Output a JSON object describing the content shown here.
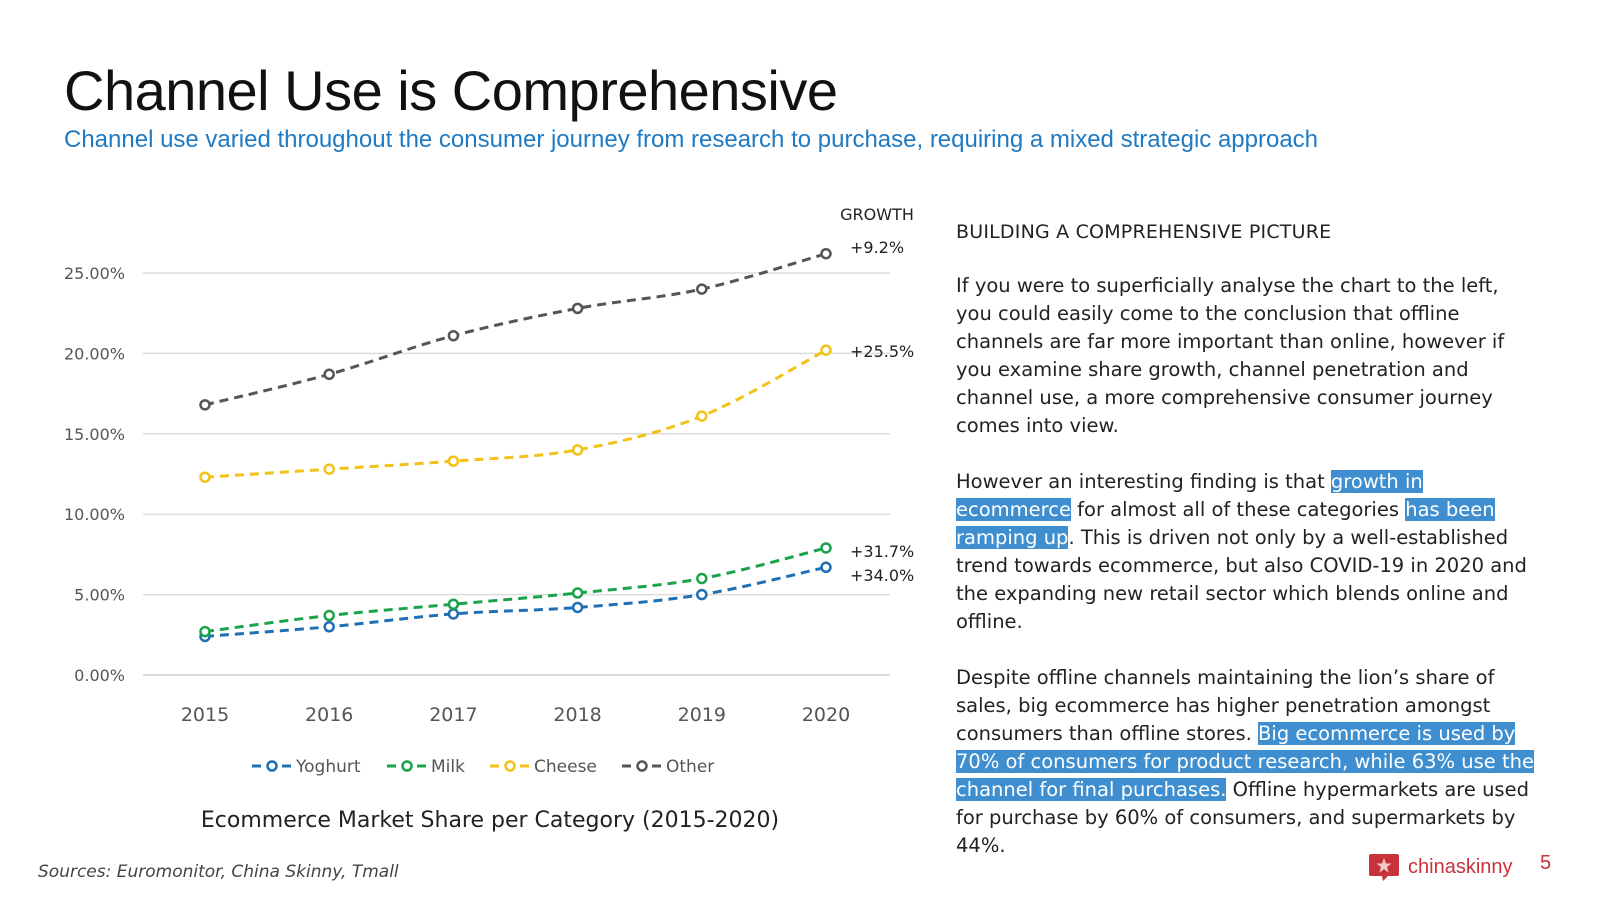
{
  "header": {
    "title": "Channel Use is Comprehensive",
    "subtitle": "Channel use varied throughout the consumer journey from research to purchase, requiring a mixed strategic approach"
  },
  "chart_data": {
    "type": "line",
    "title": "Ecommerce Market Share per Category (2015-2020)",
    "categories": [
      "2015",
      "2016",
      "2017",
      "2018",
      "2019",
      "2020"
    ],
    "ylim": [
      0,
      25
    ],
    "yticks": [
      0,
      5,
      10,
      15,
      20,
      25
    ],
    "ytick_labels": [
      "0.00%",
      "5.00%",
      "10.00%",
      "15.00%",
      "20.00%",
      "25.00%"
    ],
    "grid": true,
    "legend_position": "bottom",
    "growth_header": "GROWTH",
    "series": [
      {
        "name": "Yoghurt",
        "color": "#1f6fb5",
        "values": [
          2.4,
          3.0,
          3.8,
          4.2,
          5.0,
          6.7
        ],
        "growth": "+34.0%"
      },
      {
        "name": "Milk",
        "color": "#1aa34a",
        "values": [
          2.7,
          3.7,
          4.4,
          5.1,
          6.0,
          7.9
        ],
        "growth": "+31.7%"
      },
      {
        "name": "Cheese",
        "color": "#f2c218",
        "values": [
          12.3,
          12.8,
          13.3,
          14.0,
          16.1,
          20.2
        ],
        "growth": "+25.5%"
      },
      {
        "name": "Other",
        "color": "#555555",
        "values": [
          16.8,
          18.7,
          21.1,
          22.8,
          24.0,
          26.2
        ],
        "growth": "+9.2%"
      }
    ]
  },
  "panel": {
    "heading": "BUILDING A COMPREHENSIVE PICTURE",
    "p1": "If you were to superficially analyse the chart to the left, you could easily come to the conclusion that offline channels are far more important than online, however if you examine share growth, channel penetration and channel use, a more comprehensive consumer journey comes into view.",
    "p2_a": "However an interesting finding is that ",
    "p2_hl1": "growth in ecommerce",
    "p2_b": " for almost all of these categories ",
    "p2_hl2": "has been ramping up",
    "p2_c": ". This is driven not only by a well-established trend towards ecommerce, but also COVID-19 in 2020 and the expanding new retail sector which blends online and offline.",
    "p3_a": "Despite offline channels maintaining the lion’s share of sales, big ecommerce has higher penetration amongst consumers than offline stores. ",
    "p3_hl": "Big ecommerce is used by 70% of consumers for product research, while 63% use the channel for final purchases.",
    "p3_b": " Offline hypermarkets are used for purchase by 60% of consumers, and supermarkets by 44%."
  },
  "footer": {
    "sources": "Sources: Euromonitor, China Skinny, Tmall",
    "logo_text": "chinaskinny",
    "logo_icon": "star-badge-icon",
    "page_number": "5",
    "brand_color": "#c8323a"
  }
}
